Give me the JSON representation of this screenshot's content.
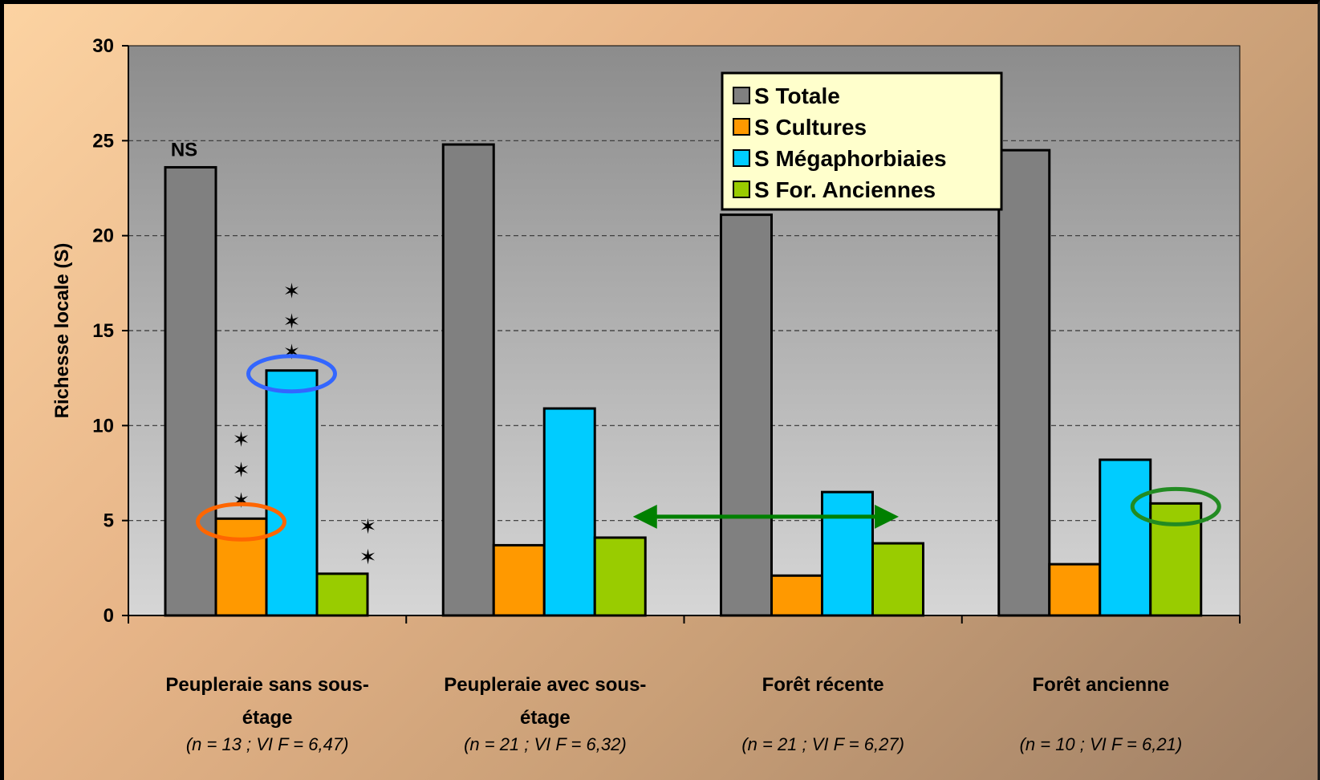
{
  "chart_data": {
    "type": "bar",
    "title": "",
    "xlabel": "",
    "ylabel": "Richesse locale (S)",
    "ylim": [
      0,
      30
    ],
    "yticks": [
      0,
      5,
      10,
      15,
      20,
      25,
      30
    ],
    "grid": true,
    "legend_position": "top-right",
    "categories": [
      {
        "label_lines": [
          "Peupleraie sans sous-",
          "étage"
        ],
        "n_label": "(n = 13 ; VI F = 6,47)"
      },
      {
        "label_lines": [
          "Peupleraie avec sous-",
          "étage"
        ],
        "n_label": "(n = 21 ; VI F = 6,32)"
      },
      {
        "label_lines": [
          "Forêt récente"
        ],
        "n_label": "(n = 21 ; VI F = 6,27)"
      },
      {
        "label_lines": [
          "Forêt ancienne"
        ],
        "n_label": "(n = 10 ; VI F = 6,21)"
      }
    ],
    "series": [
      {
        "name": "S Totale",
        "color": "#808080",
        "values": [
          23.6,
          24.8,
          21.1,
          24.5
        ]
      },
      {
        "name": "S Cultures",
        "color": "#ff9900",
        "values": [
          5.1,
          3.7,
          2.1,
          2.7
        ]
      },
      {
        "name": "S Mégaphorbiaies",
        "color": "#00ccff",
        "values": [
          12.9,
          10.9,
          6.5,
          8.2
        ]
      },
      {
        "name": "S For. Anciennes",
        "color": "#99cc00",
        "values": [
          2.2,
          4.1,
          3.8,
          5.9
        ]
      }
    ],
    "annotations": {
      "ns_label": "NS",
      "stars": [
        {
          "category": 0,
          "series": 1,
          "count": 3
        },
        {
          "category": 0,
          "series": 2,
          "count": 3
        },
        {
          "category": 0,
          "series": 3,
          "count": 2
        }
      ],
      "circles": [
        {
          "category": 0,
          "series": 1,
          "color": "#ff6600"
        },
        {
          "category": 0,
          "series": 2,
          "color": "#3366ff"
        },
        {
          "category": 3,
          "series": 3,
          "color": "#228b22"
        }
      ],
      "arrow": {
        "from_category": 1,
        "to_category": 2,
        "y_value": 5.2,
        "color": "#008000"
      }
    }
  }
}
